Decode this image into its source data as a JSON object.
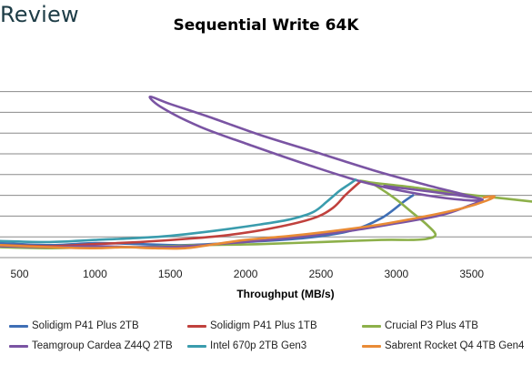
{
  "header": {
    "brand": "Review"
  },
  "chart_data": {
    "type": "line",
    "title": "Sequential Write 64K",
    "xlabel": "Throughput (MB/s)",
    "ylabel": "",
    "xlim": [
      370,
      3900
    ],
    "ylim": [
      0,
      10
    ],
    "x_ticks": [
      500,
      1000,
      1500,
      2000,
      2500,
      3000,
      3500
    ],
    "grid": "horizontal",
    "legend": "bottom",
    "series": [
      {
        "name": "Solidigm P41 Plus 2TB",
        "color": "#3f6fb5",
        "points": [
          [
            370,
            0.7
          ],
          [
            700,
            0.6
          ],
          [
            1000,
            0.7
          ],
          [
            1300,
            0.65
          ],
          [
            1600,
            0.6
          ],
          [
            2000,
            0.75
          ],
          [
            2400,
            0.95
          ],
          [
            2700,
            1.3
          ],
          [
            2900,
            1.9
          ],
          [
            3050,
            2.7
          ],
          [
            3110,
            3.0
          ]
        ]
      },
      {
        "name": "Solidigm P41 Plus 1TB",
        "color": "#c0413d",
        "points": [
          [
            370,
            0.6
          ],
          [
            700,
            0.55
          ],
          [
            1000,
            0.65
          ],
          [
            1300,
            0.75
          ],
          [
            1600,
            0.9
          ],
          [
            1900,
            1.1
          ],
          [
            2200,
            1.45
          ],
          [
            2450,
            1.9
          ],
          [
            2580,
            2.4
          ],
          [
            2660,
            3.0
          ],
          [
            2720,
            3.4
          ],
          [
            2760,
            3.65
          ]
        ]
      },
      {
        "name": "Crucial P3 Plus 4TB",
        "color": "#8db04a",
        "points": [
          [
            370,
            0.5
          ],
          [
            700,
            0.45
          ],
          [
            1000,
            0.5
          ],
          [
            1300,
            0.5
          ],
          [
            1700,
            0.6
          ],
          [
            2100,
            0.65
          ],
          [
            2500,
            0.75
          ],
          [
            2900,
            0.85
          ],
          [
            3100,
            0.85
          ],
          [
            3200,
            0.9
          ],
          [
            3260,
            1.1
          ],
          [
            3200,
            1.6
          ],
          [
            3100,
            2.2
          ],
          [
            3000,
            2.8
          ],
          [
            2900,
            3.3
          ],
          [
            2830,
            3.6
          ],
          [
            2760,
            3.7
          ],
          [
            2850,
            3.6
          ],
          [
            3100,
            3.4
          ],
          [
            3400,
            3.1
          ],
          [
            3650,
            2.9
          ],
          [
            3900,
            2.7
          ]
        ]
      },
      {
        "name": "Teamgroup Cardea Z44Q 2TB",
        "color": "#7a54a3",
        "points": [
          [
            370,
            0.55
          ],
          [
            700,
            0.5
          ],
          [
            1000,
            0.55
          ],
          [
            1300,
            0.5
          ],
          [
            1600,
            0.55
          ],
          [
            1900,
            0.7
          ],
          [
            2300,
            0.95
          ],
          [
            2700,
            1.3
          ],
          [
            3000,
            1.65
          ],
          [
            3300,
            2.05
          ],
          [
            3500,
            2.55
          ],
          [
            3560,
            2.75
          ],
          [
            3520,
            2.9
          ],
          [
            3200,
            3.5
          ],
          [
            2850,
            4.2
          ],
          [
            2500,
            5.0
          ],
          [
            2100,
            5.9
          ],
          [
            1750,
            6.8
          ],
          [
            1500,
            7.4
          ],
          [
            1365,
            7.75
          ],
          [
            1450,
            7.2
          ],
          [
            1700,
            6.3
          ],
          [
            2000,
            5.5
          ],
          [
            2400,
            4.5
          ],
          [
            2800,
            3.6
          ],
          [
            3200,
            3.0
          ],
          [
            3500,
            2.75
          ],
          [
            3550,
            2.85
          ],
          [
            3200,
            3.2
          ],
          [
            2920,
            3.45
          ]
        ]
      },
      {
        "name": "Intel 670p 2TB Gen3",
        "color": "#3a9cad",
        "points": [
          [
            370,
            0.8
          ],
          [
            700,
            0.75
          ],
          [
            1000,
            0.85
          ],
          [
            1300,
            0.95
          ],
          [
            1500,
            1.05
          ],
          [
            1800,
            1.3
          ],
          [
            2100,
            1.6
          ],
          [
            2300,
            1.85
          ],
          [
            2450,
            2.2
          ],
          [
            2540,
            2.7
          ],
          [
            2620,
            3.2
          ],
          [
            2680,
            3.5
          ],
          [
            2730,
            3.75
          ]
        ]
      },
      {
        "name": "Sabrent Rocket Q4 4TB Gen4",
        "color": "#e98b36",
        "points": [
          [
            370,
            0.6
          ],
          [
            700,
            0.5
          ],
          [
            1000,
            0.45
          ],
          [
            1200,
            0.5
          ],
          [
            1400,
            0.45
          ],
          [
            1600,
            0.45
          ],
          [
            1800,
            0.65
          ],
          [
            2000,
            0.85
          ],
          [
            2300,
            1.05
          ],
          [
            2600,
            1.3
          ],
          [
            2900,
            1.6
          ],
          [
            3200,
            2.0
          ],
          [
            3450,
            2.4
          ],
          [
            3600,
            2.75
          ],
          [
            3650,
            2.95
          ],
          [
            3580,
            2.9
          ]
        ]
      }
    ]
  }
}
